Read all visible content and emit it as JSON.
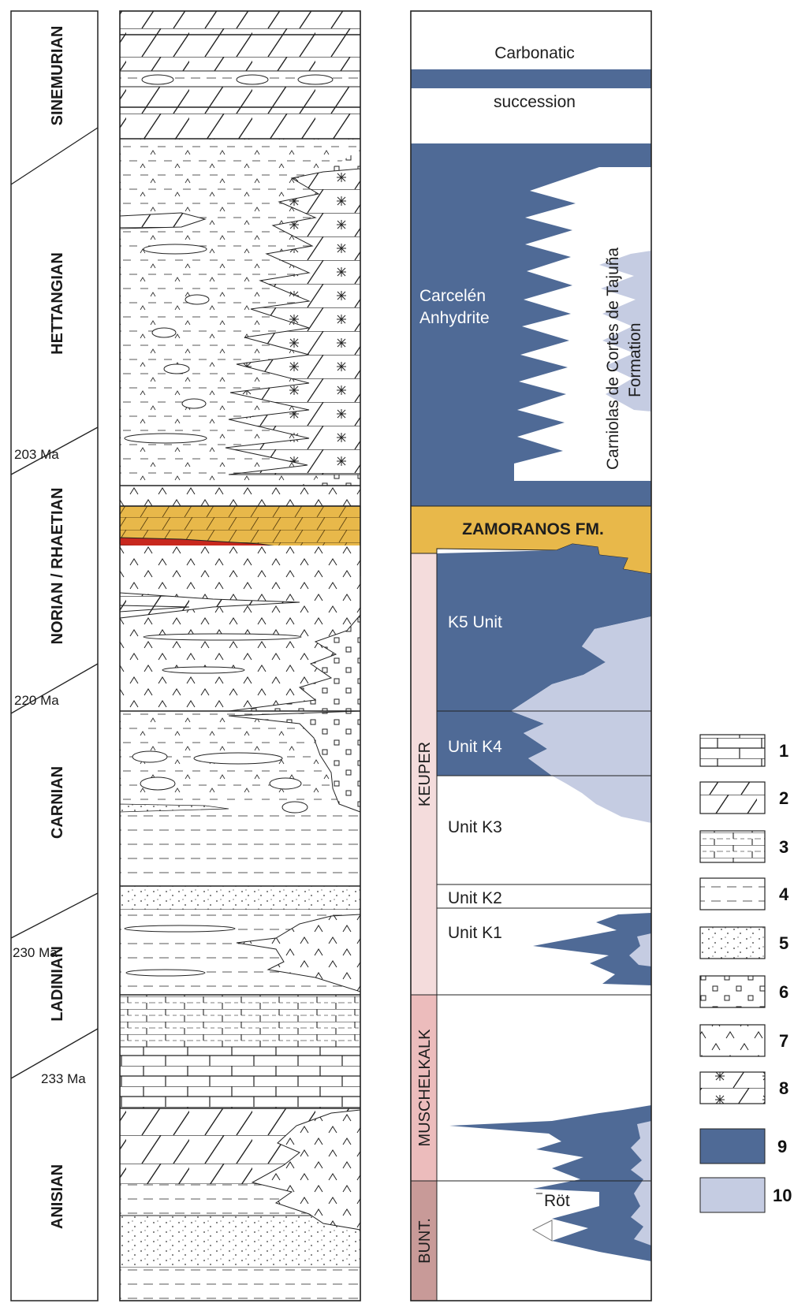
{
  "stages": [
    {
      "label": "SINEMURIAN"
    },
    {
      "label": "HETTANGIAN"
    },
    {
      "label": "NORIAN / RHAETIAN"
    },
    {
      "label": "CARNIAN"
    },
    {
      "label": "LADINIAN"
    },
    {
      "label": "ANISIAN"
    }
  ],
  "ages": [
    "203 Ma",
    "220 Ma",
    "230 Ma",
    "233 Ma"
  ],
  "groups": {
    "keuper": "KEUPER",
    "muschelkalk": "MUSCHELKALK",
    "bunt": "BUNT."
  },
  "units": {
    "carbonatic": "Carbonatic",
    "succession": "succession",
    "carcelen_1": "Carcelén",
    "carcelen_2": "Anhydrite",
    "carniolas_1": "Carniolas de Cortes de Tajuña",
    "carniolas_2": "Formation",
    "zamoranos": "ZAMORANOS FM.",
    "k5": "K5 Unit",
    "k4": "Unit K4",
    "k3": "Unit K3",
    "k2": "Unit K2",
    "k1": "Unit K1",
    "rot": "Röt"
  },
  "legend": [
    "1",
    "2",
    "3",
    "4",
    "5",
    "6",
    "7",
    "8",
    "9",
    "10"
  ],
  "colors": {
    "evaporite_dark": "#4f6a96",
    "evaporite_light": "#c5cce2",
    "zamoranos": "#e8b84a",
    "red_bed": "#c8281e",
    "keuper_band": "#f4dcdc",
    "muschelkalk_band": "#ecbcbc",
    "bunt_band": "#c89a98"
  }
}
